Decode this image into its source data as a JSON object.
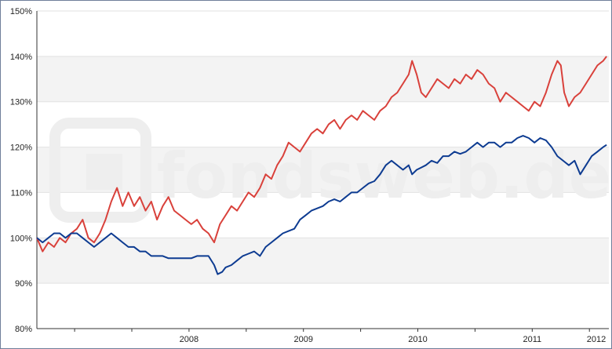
{
  "watermark": {
    "text": "fondsweb.de"
  },
  "chart_data": {
    "type": "line",
    "title": "",
    "xlabel": "",
    "ylabel": "",
    "ylim": [
      80,
      150
    ],
    "y_ticks": [
      "80%",
      "90%",
      "100%",
      "110%",
      "120%",
      "130%",
      "140%",
      "150%"
    ],
    "x_ticks": [
      {
        "label": "2008",
        "x": 2008.0
      },
      {
        "label": "2009",
        "x": 2009.0
      },
      {
        "label": "2010",
        "x": 2010.0
      },
      {
        "label": "2011",
        "x": 2011.0
      },
      {
        "label": "2012",
        "x": 2012.0
      }
    ],
    "xlim": [
      2007.17,
      2012.17
    ],
    "grid": "horizontal bands",
    "series": [
      {
        "color": "#d9413b",
        "points": [
          [
            2007.17,
            100
          ],
          [
            2007.22,
            97
          ],
          [
            2007.27,
            99
          ],
          [
            2007.32,
            98
          ],
          [
            2007.37,
            100
          ],
          [
            2007.42,
            99
          ],
          [
            2007.47,
            101
          ],
          [
            2007.52,
            102
          ],
          [
            2007.57,
            104
          ],
          [
            2007.62,
            100
          ],
          [
            2007.67,
            99
          ],
          [
            2007.72,
            101
          ],
          [
            2007.77,
            104
          ],
          [
            2007.82,
            108
          ],
          [
            2007.87,
            111
          ],
          [
            2007.92,
            107
          ],
          [
            2007.97,
            110
          ],
          [
            2008.02,
            107
          ],
          [
            2008.07,
            109
          ],
          [
            2008.12,
            106
          ],
          [
            2008.17,
            108
          ],
          [
            2008.22,
            104
          ],
          [
            2008.27,
            107
          ],
          [
            2008.32,
            109
          ],
          [
            2008.37,
            106
          ],
          [
            2008.42,
            105
          ],
          [
            2008.47,
            104
          ],
          [
            2008.52,
            103
          ],
          [
            2008.57,
            104
          ],
          [
            2008.62,
            102
          ],
          [
            2008.67,
            101
          ],
          [
            2008.72,
            99
          ],
          [
            2008.77,
            103
          ],
          [
            2008.82,
            105
          ],
          [
            2008.87,
            107
          ],
          [
            2008.92,
            106
          ],
          [
            2008.97,
            108
          ],
          [
            2009.02,
            110
          ],
          [
            2009.07,
            109
          ],
          [
            2009.12,
            111
          ],
          [
            2009.17,
            114
          ],
          [
            2009.22,
            113
          ],
          [
            2009.27,
            116
          ],
          [
            2009.32,
            118
          ],
          [
            2009.37,
            121
          ],
          [
            2009.42,
            120
          ],
          [
            2009.47,
            119
          ],
          [
            2009.52,
            121
          ],
          [
            2009.57,
            123
          ],
          [
            2009.62,
            124
          ],
          [
            2009.67,
            123
          ],
          [
            2009.72,
            125
          ],
          [
            2009.77,
            126
          ],
          [
            2009.82,
            124
          ],
          [
            2009.87,
            126
          ],
          [
            2009.92,
            127
          ],
          [
            2009.97,
            126
          ],
          [
            2010.02,
            128
          ],
          [
            2010.07,
            127
          ],
          [
            2010.12,
            126
          ],
          [
            2010.17,
            128
          ],
          [
            2010.22,
            129
          ],
          [
            2010.27,
            131
          ],
          [
            2010.32,
            132
          ],
          [
            2010.37,
            134
          ],
          [
            2010.42,
            136
          ],
          [
            2010.45,
            139
          ],
          [
            2010.49,
            136
          ],
          [
            2010.53,
            132
          ],
          [
            2010.57,
            131
          ],
          [
            2010.62,
            133
          ],
          [
            2010.67,
            135
          ],
          [
            2010.72,
            134
          ],
          [
            2010.77,
            133
          ],
          [
            2010.82,
            135
          ],
          [
            2010.87,
            134
          ],
          [
            2010.92,
            136
          ],
          [
            2010.97,
            135
          ],
          [
            2011.02,
            137
          ],
          [
            2011.07,
            136
          ],
          [
            2011.12,
            134
          ],
          [
            2011.17,
            133
          ],
          [
            2011.22,
            130
          ],
          [
            2011.27,
            132
          ],
          [
            2011.32,
            131
          ],
          [
            2011.37,
            130
          ],
          [
            2011.42,
            129
          ],
          [
            2011.47,
            128
          ],
          [
            2011.52,
            130
          ],
          [
            2011.57,
            129
          ],
          [
            2011.62,
            132
          ],
          [
            2011.67,
            136
          ],
          [
            2011.72,
            139
          ],
          [
            2011.75,
            138
          ],
          [
            2011.78,
            132
          ],
          [
            2011.82,
            129
          ],
          [
            2011.87,
            131
          ],
          [
            2011.92,
            132
          ],
          [
            2011.97,
            134
          ],
          [
            2012.02,
            136
          ],
          [
            2012.07,
            138
          ],
          [
            2012.12,
            139
          ],
          [
            2012.15,
            140
          ]
        ]
      },
      {
        "color": "#0d3b91",
        "points": [
          [
            2007.17,
            100
          ],
          [
            2007.22,
            99
          ],
          [
            2007.27,
            100
          ],
          [
            2007.32,
            101
          ],
          [
            2007.37,
            101
          ],
          [
            2007.42,
            100
          ],
          [
            2007.47,
            101
          ],
          [
            2007.52,
            101
          ],
          [
            2007.57,
            100
          ],
          [
            2007.62,
            99
          ],
          [
            2007.67,
            98
          ],
          [
            2007.72,
            99
          ],
          [
            2007.77,
            100
          ],
          [
            2007.82,
            101
          ],
          [
            2007.87,
            100
          ],
          [
            2007.92,
            99
          ],
          [
            2007.97,
            98
          ],
          [
            2008.02,
            98
          ],
          [
            2008.07,
            97
          ],
          [
            2008.12,
            97
          ],
          [
            2008.17,
            96
          ],
          [
            2008.22,
            96
          ],
          [
            2008.27,
            96
          ],
          [
            2008.32,
            95.5
          ],
          [
            2008.37,
            95.5
          ],
          [
            2008.42,
            95.5
          ],
          [
            2008.47,
            95.5
          ],
          [
            2008.52,
            95.5
          ],
          [
            2008.57,
            96
          ],
          [
            2008.62,
            96
          ],
          [
            2008.67,
            96
          ],
          [
            2008.72,
            94
          ],
          [
            2008.75,
            92
          ],
          [
            2008.79,
            92.5
          ],
          [
            2008.82,
            93.5
          ],
          [
            2008.87,
            94
          ],
          [
            2008.92,
            95
          ],
          [
            2008.97,
            96
          ],
          [
            2009.02,
            96.5
          ],
          [
            2009.07,
            97
          ],
          [
            2009.12,
            96
          ],
          [
            2009.17,
            98
          ],
          [
            2009.22,
            99
          ],
          [
            2009.27,
            100
          ],
          [
            2009.32,
            101
          ],
          [
            2009.37,
            101.5
          ],
          [
            2009.42,
            102
          ],
          [
            2009.47,
            104
          ],
          [
            2009.52,
            105
          ],
          [
            2009.57,
            106
          ],
          [
            2009.62,
            106.5
          ],
          [
            2009.67,
            107
          ],
          [
            2009.72,
            108
          ],
          [
            2009.77,
            108.5
          ],
          [
            2009.82,
            108
          ],
          [
            2009.87,
            109
          ],
          [
            2009.92,
            110
          ],
          [
            2009.97,
            110
          ],
          [
            2010.02,
            111
          ],
          [
            2010.07,
            112
          ],
          [
            2010.12,
            112.5
          ],
          [
            2010.17,
            114
          ],
          [
            2010.22,
            116
          ],
          [
            2010.27,
            117
          ],
          [
            2010.32,
            116
          ],
          [
            2010.37,
            115
          ],
          [
            2010.42,
            116
          ],
          [
            2010.45,
            114
          ],
          [
            2010.49,
            115
          ],
          [
            2010.53,
            115.5
          ],
          [
            2010.57,
            116
          ],
          [
            2010.62,
            117
          ],
          [
            2010.67,
            116.5
          ],
          [
            2010.72,
            118
          ],
          [
            2010.77,
            118
          ],
          [
            2010.82,
            119
          ],
          [
            2010.87,
            118.5
          ],
          [
            2010.92,
            119
          ],
          [
            2010.97,
            120
          ],
          [
            2011.02,
            121
          ],
          [
            2011.07,
            120
          ],
          [
            2011.12,
            121
          ],
          [
            2011.17,
            121
          ],
          [
            2011.22,
            120
          ],
          [
            2011.27,
            121
          ],
          [
            2011.32,
            121
          ],
          [
            2011.37,
            122
          ],
          [
            2011.42,
            122.5
          ],
          [
            2011.47,
            122
          ],
          [
            2011.52,
            121
          ],
          [
            2011.57,
            122
          ],
          [
            2011.62,
            121.5
          ],
          [
            2011.67,
            120
          ],
          [
            2011.72,
            118
          ],
          [
            2011.77,
            117
          ],
          [
            2011.82,
            116
          ],
          [
            2011.87,
            117
          ],
          [
            2011.92,
            114
          ],
          [
            2011.97,
            116
          ],
          [
            2012.02,
            118
          ],
          [
            2012.07,
            119
          ],
          [
            2012.12,
            120
          ],
          [
            2012.15,
            120.5
          ]
        ]
      }
    ]
  }
}
